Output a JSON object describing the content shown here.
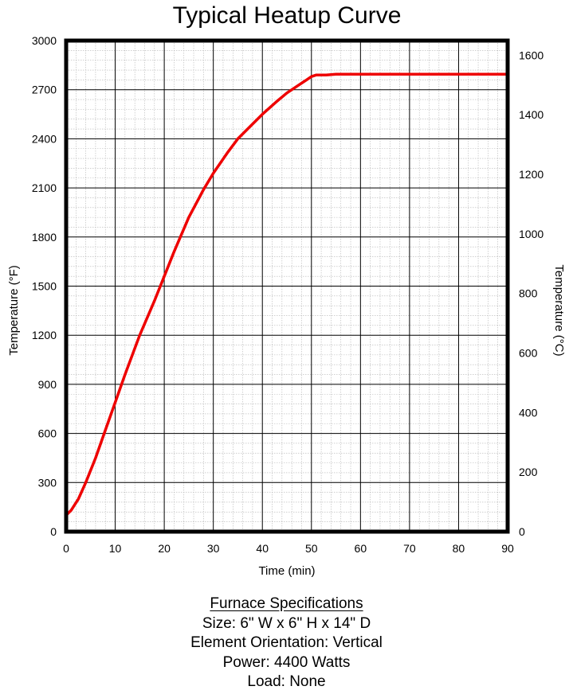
{
  "chart_data": {
    "type": "line",
    "title": "Typical Heatup Curve",
    "xlabel": "Time (min)",
    "ylabel": "Temperature (°F)",
    "y2label": "Temperature (°C)",
    "xlim": [
      0,
      90
    ],
    "ylim": [
      0,
      3000
    ],
    "y2lim": [
      0,
      1649
    ],
    "x_ticks": [
      "0",
      "10",
      "20",
      "30",
      "40",
      "50",
      "60",
      "70",
      "80",
      "90"
    ],
    "y_ticks": [
      "0",
      "300",
      "600",
      "900",
      "1200",
      "1500",
      "1800",
      "2100",
      "2400",
      "2700",
      "3000"
    ],
    "y2_ticks": [
      "0",
      "200",
      "400",
      "600",
      "800",
      "1000",
      "1200",
      "1400",
      "1600"
    ],
    "grid": true,
    "minor_grid": true,
    "series": [
      {
        "color": "#ee0000",
        "x": [
          0,
          1,
          2.5,
          4,
          6,
          8,
          10,
          12,
          15,
          18,
          20,
          22,
          25,
          28,
          30,
          33,
          35,
          38,
          40,
          43,
          45,
          47,
          49,
          50,
          51,
          53,
          55,
          60,
          70,
          80,
          90
        ],
        "y": [
          100,
          130,
          200,
          300,
          450,
          620,
          790,
          960,
          1200,
          1410,
          1560,
          1710,
          1920,
          2090,
          2190,
          2320,
          2400,
          2490,
          2550,
          2630,
          2680,
          2720,
          2760,
          2780,
          2790,
          2790,
          2795,
          2795,
          2795,
          2795,
          2795
        ]
      }
    ]
  },
  "specs": {
    "title": "Furnace Specifications",
    "size": "Size: 6\" W x 6\" H x 14\" D",
    "orientation": "Element Orientation: Vertical",
    "power": "Power: 4400 Watts",
    "load": "Load: None"
  }
}
